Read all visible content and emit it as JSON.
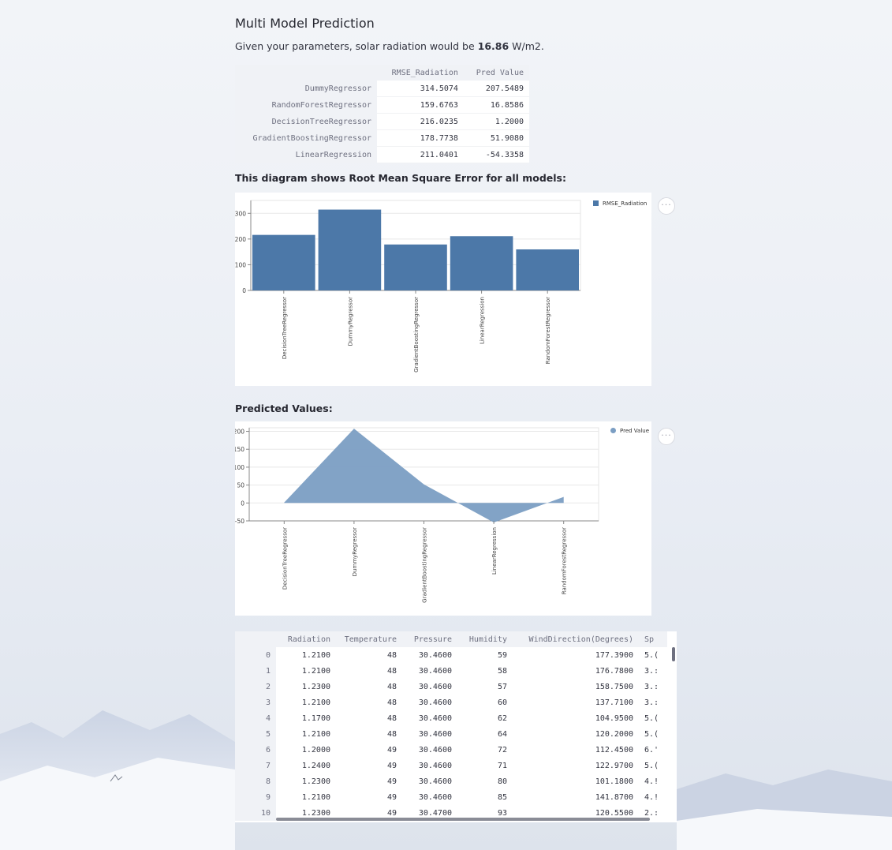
{
  "page": {
    "title": "Multi Model Prediction",
    "result_prefix": "Given your parameters, solar radiation would be ",
    "result_value": "16.86",
    "result_suffix": " W/m2."
  },
  "model_table": {
    "columns": [
      "RMSE_Radiation",
      "Pred Value"
    ],
    "rows": [
      {
        "model": "DummyRegressor",
        "rmse": "314.5074",
        "pred": "207.5489"
      },
      {
        "model": "RandomForestRegressor",
        "rmse": "159.6763",
        "pred": "16.8586"
      },
      {
        "model": "DecisionTreeRegressor",
        "rmse": "216.0235",
        "pred": "1.2000"
      },
      {
        "model": "GradientBoostingRegressor",
        "rmse": "178.7738",
        "pred": "51.9080"
      },
      {
        "model": "LinearRegression",
        "rmse": "211.0401",
        "pred": "-54.3358"
      }
    ]
  },
  "rmse_caption": "This diagram shows Root Mean Square Error for all models:",
  "pred_caption": "Predicted Values:",
  "chart_data": [
    {
      "type": "bar",
      "categories": [
        "DecisionTreeRegressor",
        "DummyRegressor",
        "GradientBoostingRegressor",
        "LinearRegression",
        "RandomForestRegressor"
      ],
      "series": [
        {
          "name": "RMSE_Radiation",
          "values": [
            216.0235,
            314.5074,
            178.7738,
            211.0401,
            159.6763
          ]
        }
      ],
      "yticks": [
        0,
        100,
        200,
        300
      ],
      "ylim": [
        0,
        350
      ],
      "legend": "top-right",
      "color": "#4c78a8",
      "grid": true
    },
    {
      "type": "area",
      "categories": [
        "DecisionTreeRegressor",
        "DummyRegressor",
        "GradientBoostingRegressor",
        "LinearRegression",
        "RandomForestRegressor"
      ],
      "series": [
        {
          "name": "Pred Value",
          "values": [
            1.2,
            207.5489,
            51.908,
            -54.3358,
            16.8586
          ]
        }
      ],
      "yticks": [
        -50,
        0,
        50,
        100,
        150,
        200
      ],
      "ylim": [
        -50,
        210
      ],
      "legend": "top-right",
      "color": "#7b9ec3",
      "grid": true
    }
  ],
  "chart_menu_label": "···",
  "dataframe": {
    "columns": [
      "Radiation",
      "Temperature",
      "Pressure",
      "Humidity",
      "WindDirection(Degrees)",
      "Sp"
    ],
    "rows": [
      [
        "0",
        "1.2100",
        "48",
        "30.4600",
        "59",
        "177.3900",
        "5.("
      ],
      [
        "1",
        "1.2100",
        "48",
        "30.4600",
        "58",
        "176.7800",
        "3.:"
      ],
      [
        "2",
        "1.2300",
        "48",
        "30.4600",
        "57",
        "158.7500",
        "3.:"
      ],
      [
        "3",
        "1.2100",
        "48",
        "30.4600",
        "60",
        "137.7100",
        "3.:"
      ],
      [
        "4",
        "1.1700",
        "48",
        "30.4600",
        "62",
        "104.9500",
        "5.("
      ],
      [
        "5",
        "1.2100",
        "48",
        "30.4600",
        "64",
        "120.2000",
        "5.("
      ],
      [
        "6",
        "1.2000",
        "49",
        "30.4600",
        "72",
        "112.4500",
        "6.'"
      ],
      [
        "7",
        "1.2400",
        "49",
        "30.4600",
        "71",
        "122.9700",
        "5.("
      ],
      [
        "8",
        "1.2300",
        "49",
        "30.4600",
        "80",
        "101.1800",
        "4.!"
      ],
      [
        "9",
        "1.2100",
        "49",
        "30.4600",
        "85",
        "141.8700",
        "4.!"
      ],
      [
        "10",
        "1.2300",
        "49",
        "30.4700",
        "93",
        "120.5500",
        "2.:"
      ]
    ]
  }
}
